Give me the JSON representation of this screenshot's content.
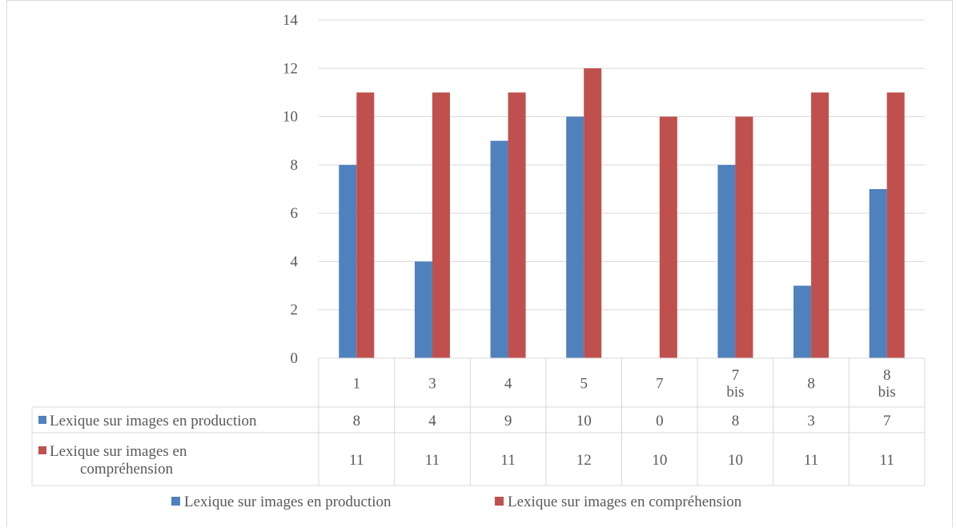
{
  "chart_data": {
    "type": "bar",
    "categories": [
      "1",
      "3",
      "4",
      "5",
      "7",
      "7\nbis",
      "8",
      "8\nbis"
    ],
    "ylim": [
      0,
      14
    ],
    "yticks": [
      0,
      2,
      4,
      6,
      8,
      10,
      12,
      14
    ],
    "grid": true,
    "legend_position": "bottom",
    "data_table": true,
    "series": [
      {
        "name": "Lexique sur images en production",
        "table_label": [
          "Lexique sur images en production"
        ],
        "color": "#4f81bd",
        "values": [
          8,
          4,
          9,
          10,
          0,
          8,
          3,
          7
        ]
      },
      {
        "name": "Lexique sur images en compréhension",
        "table_label": [
          "Lexique sur images en",
          "compréhension"
        ],
        "color": "#c0504d",
        "values": [
          11,
          11,
          11,
          12,
          10,
          10,
          11,
          11
        ]
      }
    ]
  }
}
